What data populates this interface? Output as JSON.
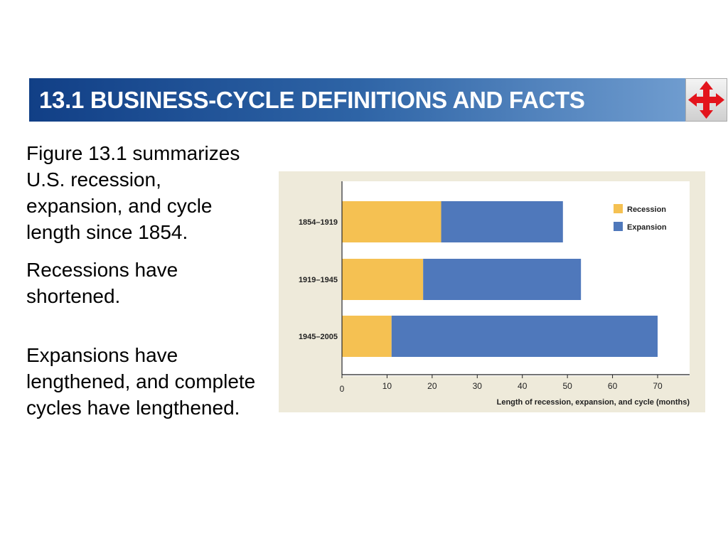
{
  "header": {
    "title": "13.1 BUSINESS-CYCLE DEFINITIONS AND FACTS",
    "nav_icon": "red-four-way-arrows-icon"
  },
  "bullets": [
    "Figure 13.1 summarizes U.S. recession, expansion, and cycle length since 1854.",
    "Recessions have shortened.",
    "Expansions have lengthened, and complete cycles have lengthened."
  ],
  "colors": {
    "recession": "#f5c152",
    "expansion": "#4f78bb",
    "title_bar_start": "#113f86",
    "title_bar_end": "#6f9ccf",
    "chart_background": "#eeeada"
  },
  "chart_data": {
    "type": "bar",
    "orientation": "horizontal",
    "stacked": true,
    "categories": [
      "1854–1919",
      "1919–1945",
      "1945–2005"
    ],
    "series": [
      {
        "name": "Recession",
        "values": [
          22,
          18,
          11
        ]
      },
      {
        "name": "Expansion",
        "values": [
          27,
          35,
          59
        ]
      }
    ],
    "xlabel": "Length of recession, expansion, and cycle (months)",
    "ylabel": "",
    "xlim": [
      0,
      70
    ],
    "xticks": [
      "0",
      "10",
      "20",
      "30",
      "40",
      "50",
      "60",
      "70"
    ],
    "legend_position": "top-right",
    "grid": false
  }
}
